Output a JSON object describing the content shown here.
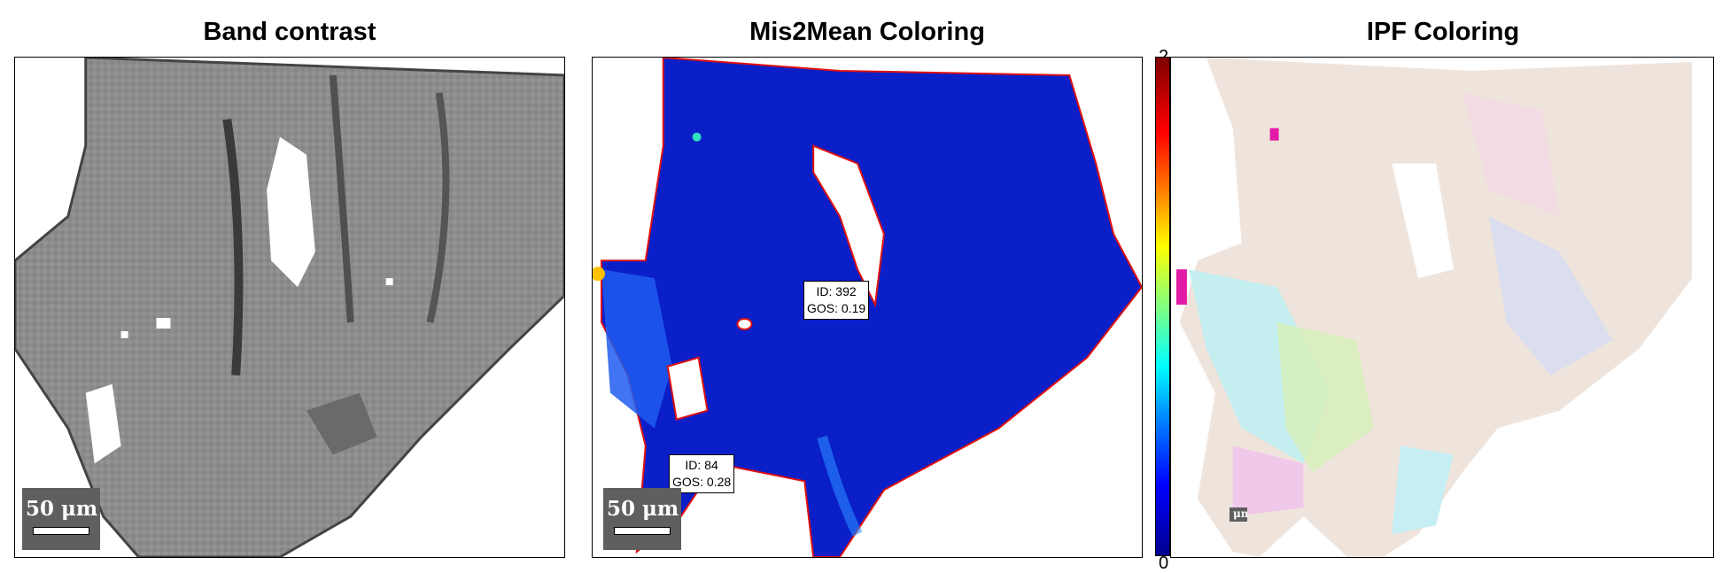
{
  "panels": {
    "band_contrast": {
      "title": "Band contrast",
      "scalebar": "50 μm"
    },
    "mis2mean": {
      "title": "Mis2Mean Coloring",
      "scalebar": "50 μm",
      "grain_labels": [
        {
          "id_text": "ID: 392",
          "gos_text": "GOS: 0.19"
        },
        {
          "id_text": "ID: 84",
          "gos_text": "GOS: 0.28"
        }
      ]
    },
    "ipf": {
      "title": "IPF Coloring",
      "scalebar": "μm"
    }
  },
  "colorbar": {
    "max_label": "2",
    "min_label": "0",
    "colors": [
      "#800000",
      "#ff0000",
      "#ff8000",
      "#ffff00",
      "#80ff80",
      "#00ffff",
      "#0080ff",
      "#0000ff",
      "#00008f"
    ]
  },
  "colors": {
    "band_gray": "#8a8a8a",
    "mis_blue": "#0a1fc8",
    "boundary": "#e01010",
    "ipf_base": "#efe4dc",
    "scalebar_bg": "#5f5f5f"
  }
}
